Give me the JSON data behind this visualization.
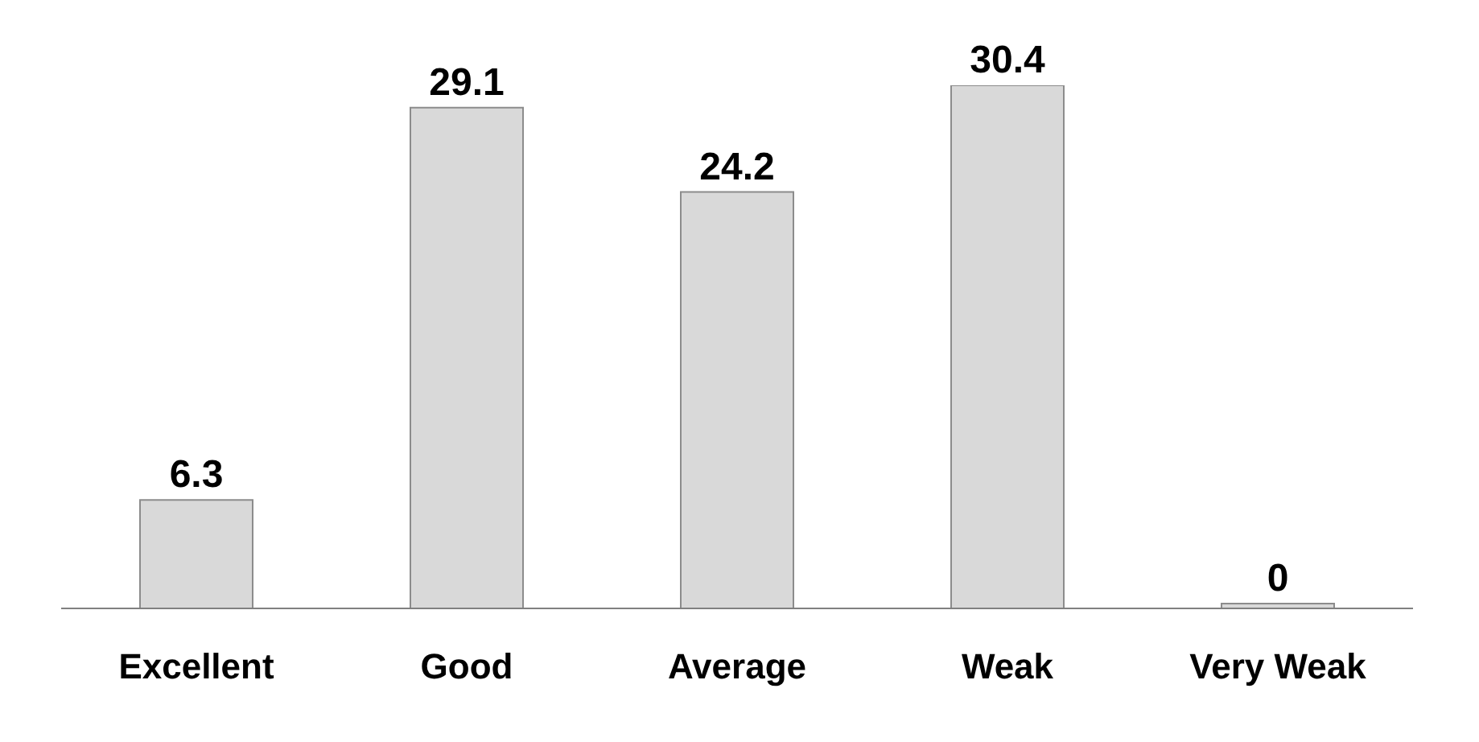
{
  "chart_data": {
    "type": "bar",
    "categories": [
      "Excellent",
      "Good",
      "Average",
      "Weak",
      "Very Weak"
    ],
    "values": [
      6.3,
      29.1,
      24.2,
      30.4,
      0
    ],
    "color": "#d9d9d9",
    "data_labels": true
  }
}
